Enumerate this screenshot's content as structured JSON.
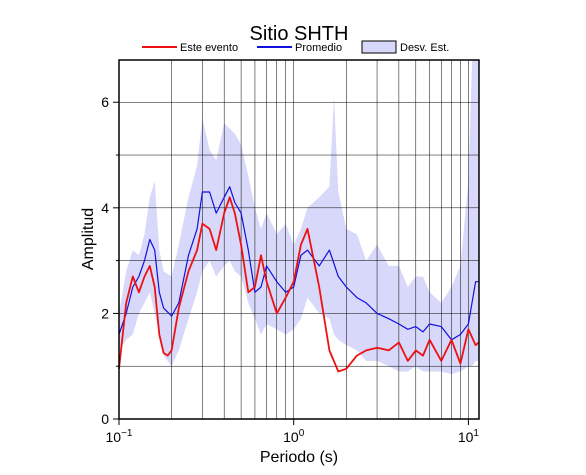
{
  "chart_data": {
    "type": "line",
    "title": "Sitio SHTH",
    "xlabel": "Periodo (s)",
    "ylabel": "Amplitud",
    "xscale": "log",
    "xlim": [
      0.1,
      11.5
    ],
    "ylim": [
      0,
      6.8
    ],
    "grid": true,
    "legend_position": "top",
    "xticks": [
      {
        "value": 0.1,
        "base": "10",
        "exp": "−1"
      },
      {
        "value": 1,
        "base": "10",
        "exp": "0"
      },
      {
        "value": 10,
        "base": "10",
        "exp": "1"
      }
    ],
    "yticks": [
      0,
      2,
      4,
      6
    ],
    "legend": [
      {
        "key": "event",
        "label": "Este evento",
        "kind": "line"
      },
      {
        "key": "mean",
        "label": "Promedio",
        "kind": "line"
      },
      {
        "key": "std",
        "label": "Desv. Est.",
        "kind": "box"
      }
    ],
    "colors": {
      "event": "#ee1111",
      "mean": "#1111dd",
      "band": "#d8d8fa",
      "grid": "#000000"
    },
    "series": [
      {
        "key": "event",
        "name": "Este evento",
        "x": [
          0.1,
          0.11,
          0.12,
          0.13,
          0.14,
          0.15,
          0.16,
          0.17,
          0.18,
          0.19,
          0.2,
          0.22,
          0.25,
          0.28,
          0.3,
          0.33,
          0.36,
          0.4,
          0.43,
          0.46,
          0.5,
          0.55,
          0.6,
          0.65,
          0.7,
          0.8,
          0.9,
          1.0,
          1.1,
          1.2,
          1.4,
          1.6,
          1.8,
          2.0,
          2.3,
          2.6,
          3.0,
          3.5,
          4.0,
          4.5,
          5.0,
          5.5,
          6.0,
          7.0,
          8.0,
          9.0,
          10.0,
          11.0,
          11.5
        ],
        "y": [
          0.95,
          2.2,
          2.7,
          2.4,
          2.7,
          2.9,
          2.5,
          1.6,
          1.25,
          1.2,
          1.3,
          2.1,
          2.8,
          3.2,
          3.7,
          3.6,
          3.2,
          3.9,
          4.2,
          3.9,
          3.3,
          2.4,
          2.5,
          3.1,
          2.6,
          2.0,
          2.3,
          2.6,
          3.3,
          3.6,
          2.5,
          1.3,
          0.9,
          0.95,
          1.2,
          1.3,
          1.35,
          1.3,
          1.45,
          1.1,
          1.3,
          1.2,
          1.5,
          1.1,
          1.5,
          1.05,
          1.7,
          1.4,
          1.45
        ]
      },
      {
        "key": "mean",
        "name": "Promedio",
        "x": [
          0.1,
          0.11,
          0.12,
          0.13,
          0.14,
          0.15,
          0.16,
          0.17,
          0.18,
          0.2,
          0.22,
          0.25,
          0.28,
          0.3,
          0.33,
          0.36,
          0.4,
          0.43,
          0.46,
          0.5,
          0.55,
          0.6,
          0.65,
          0.7,
          0.8,
          0.9,
          1.0,
          1.1,
          1.2,
          1.4,
          1.6,
          1.8,
          2.0,
          2.3,
          2.6,
          3.0,
          3.5,
          4.0,
          4.5,
          5.0,
          5.5,
          6.0,
          7.0,
          8.0,
          9.0,
          10.0,
          11.0,
          11.5
        ],
        "y": [
          1.6,
          2.0,
          2.5,
          2.7,
          3.0,
          3.4,
          3.2,
          2.4,
          2.1,
          1.95,
          2.2,
          3.1,
          3.6,
          4.3,
          4.3,
          3.9,
          4.2,
          4.4,
          4.1,
          3.9,
          3.2,
          2.4,
          2.5,
          2.9,
          2.6,
          2.4,
          2.5,
          3.1,
          3.2,
          2.9,
          3.2,
          2.7,
          2.5,
          2.3,
          2.2,
          2.0,
          1.9,
          1.8,
          1.7,
          1.75,
          1.65,
          1.8,
          1.75,
          1.5,
          1.6,
          1.8,
          2.6,
          2.6
        ]
      },
      {
        "key": "std",
        "name": "Desv. Est.",
        "x": [
          0.1,
          0.11,
          0.12,
          0.13,
          0.14,
          0.15,
          0.16,
          0.17,
          0.18,
          0.2,
          0.22,
          0.25,
          0.28,
          0.3,
          0.33,
          0.36,
          0.4,
          0.43,
          0.46,
          0.5,
          0.55,
          0.6,
          0.65,
          0.7,
          0.8,
          0.9,
          1.0,
          1.1,
          1.2,
          1.4,
          1.6,
          1.7,
          1.8,
          2.0,
          2.3,
          2.6,
          3.0,
          3.5,
          4.0,
          4.5,
          5.0,
          5.5,
          6.0,
          7.0,
          8.0,
          9.0,
          10.0,
          10.5,
          11.0,
          11.5
        ],
        "upper": [
          2.0,
          2.8,
          3.2,
          3.1,
          3.5,
          4.2,
          4.5,
          3.2,
          2.8,
          2.7,
          3.3,
          4.2,
          4.8,
          5.7,
          5.1,
          4.9,
          5.6,
          5.5,
          5.4,
          5.2,
          4.6,
          4.0,
          3.6,
          3.9,
          3.5,
          3.7,
          3.3,
          3.6,
          4.0,
          4.2,
          4.4,
          6.1,
          4.3,
          3.6,
          3.5,
          3.0,
          3.3,
          2.9,
          2.9,
          2.5,
          2.7,
          2.7,
          2.4,
          2.2,
          2.5,
          2.9,
          4.5,
          6.8,
          6.8,
          6.8
        ],
        "lower": [
          1.3,
          1.5,
          1.6,
          2.0,
          2.2,
          2.4,
          2.0,
          1.6,
          1.2,
          1.0,
          1.3,
          1.9,
          2.4,
          2.8,
          3.0,
          2.7,
          2.9,
          3.0,
          2.8,
          2.7,
          2.2,
          1.9,
          1.6,
          1.8,
          1.7,
          1.6,
          1.7,
          1.9,
          2.3,
          2.0,
          1.9,
          1.6,
          1.5,
          1.4,
          1.3,
          1.1,
          1.1,
          1.0,
          0.9,
          0.9,
          1.0,
          0.9,
          0.9,
          0.9,
          0.85,
          0.9,
          1.0,
          1.0,
          1.1,
          1.1
        ]
      }
    ]
  }
}
